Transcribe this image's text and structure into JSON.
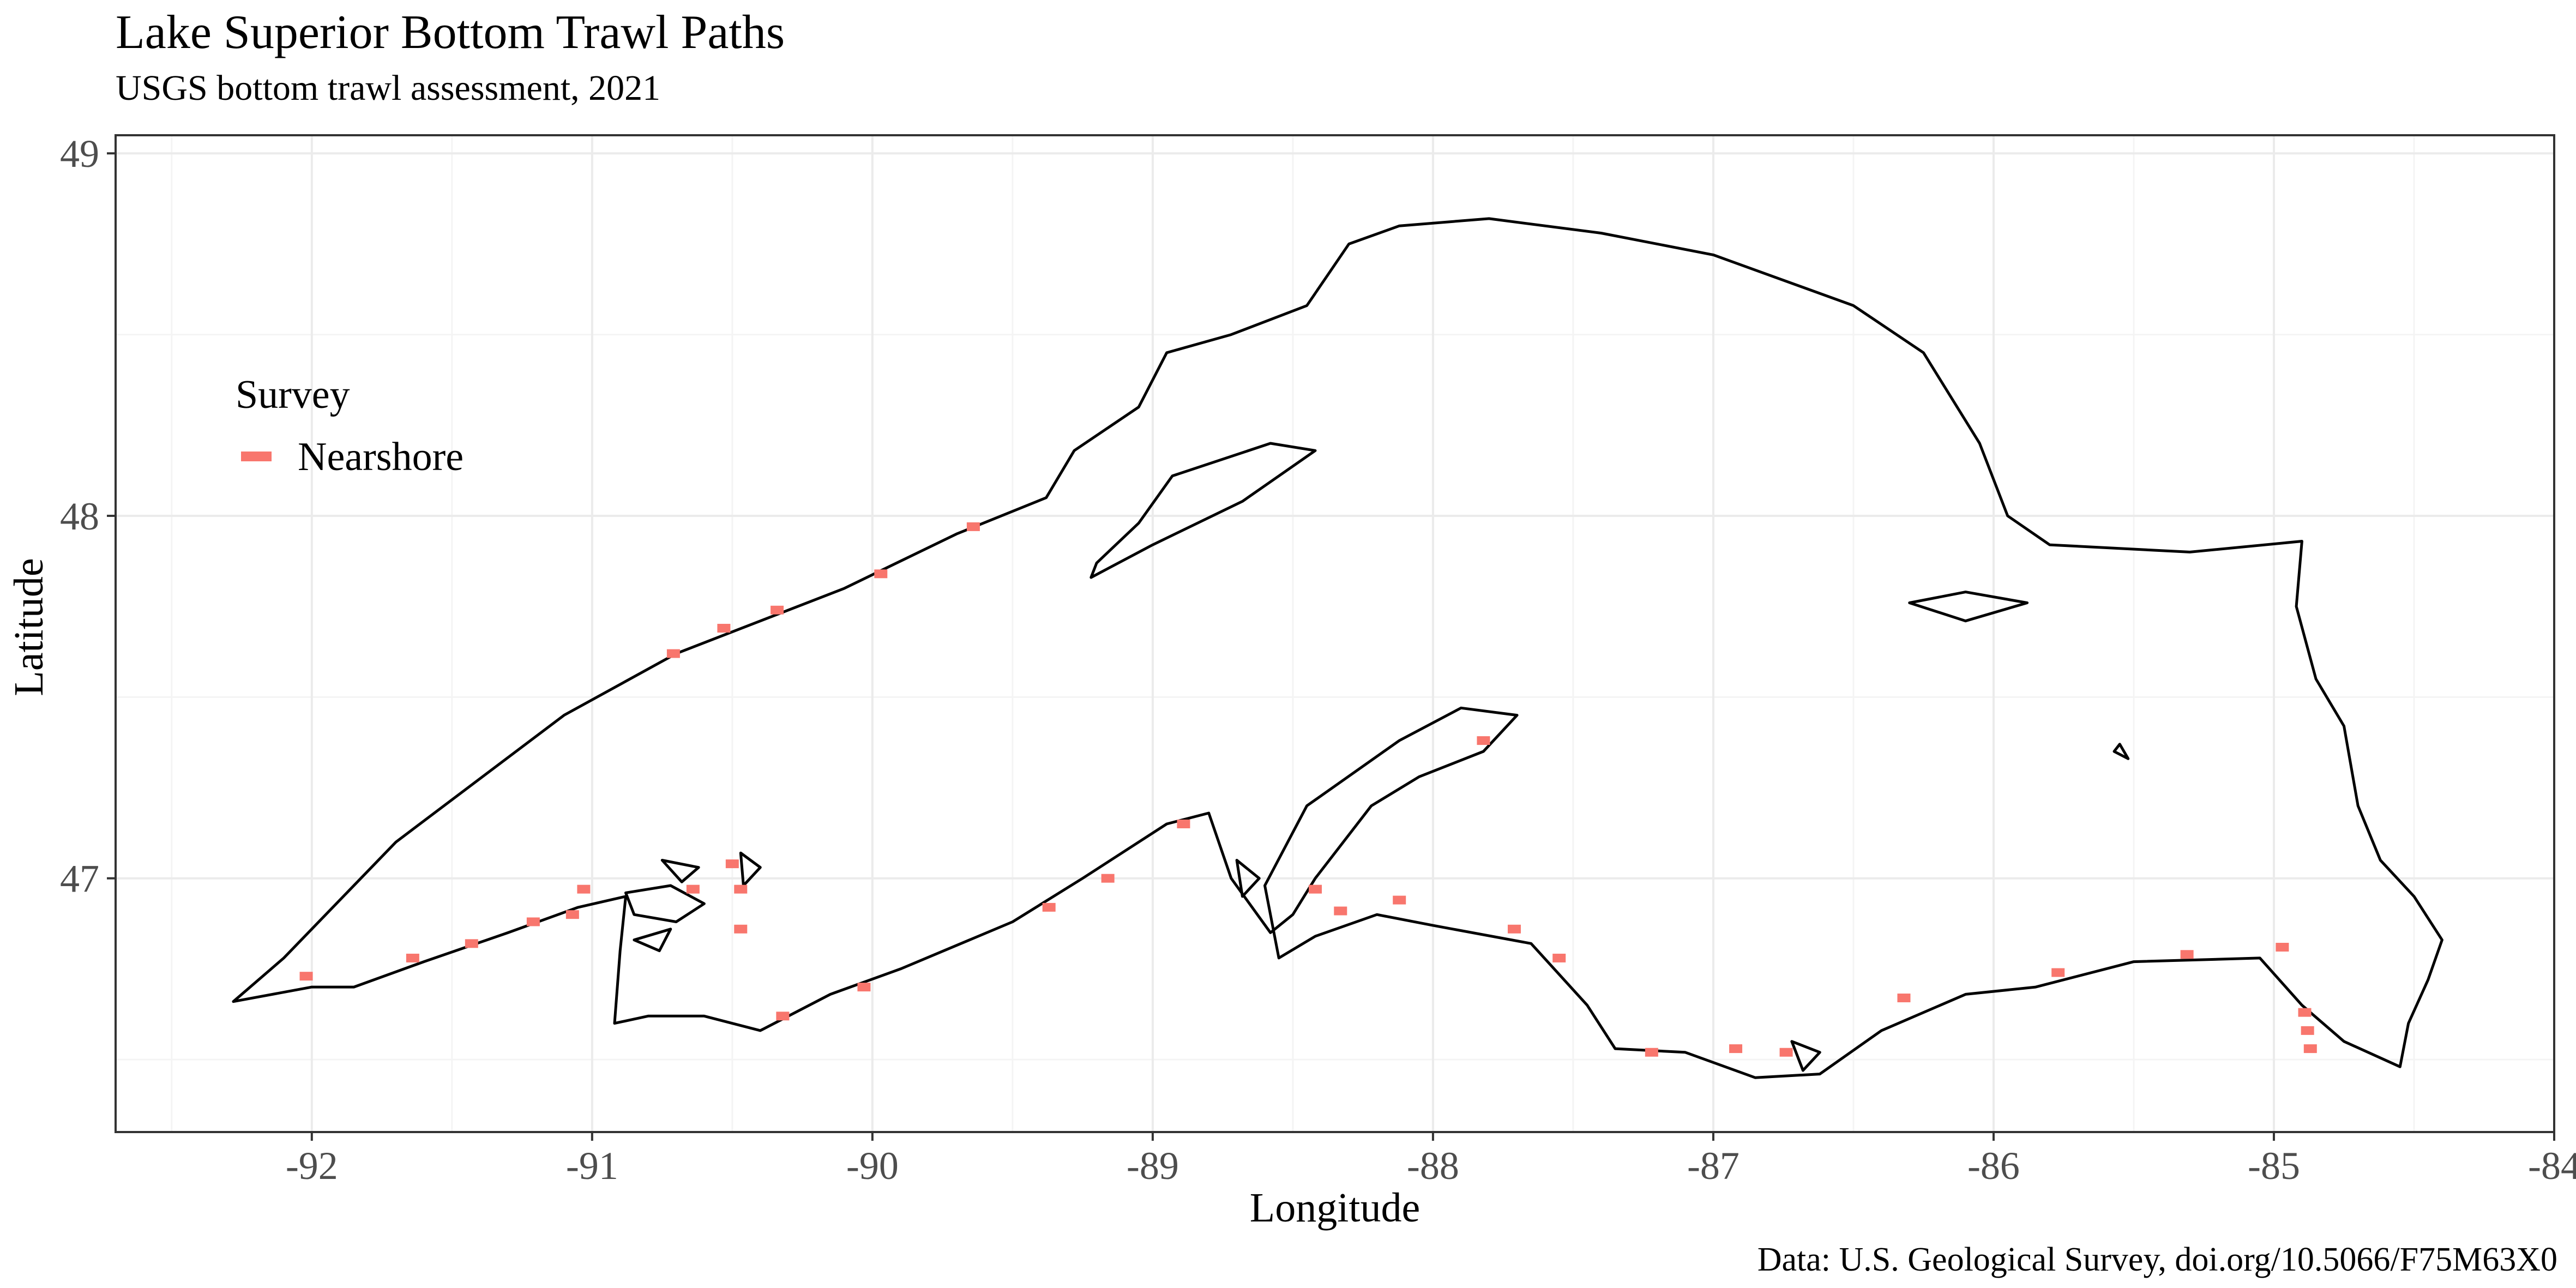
{
  "title": "Lake Superior Bottom Trawl Paths",
  "subtitle": "USGS bottom trawl assessment, 2021",
  "caption": "Data: U.S. Geological Survey, doi.org/10.5066/F75M63X0",
  "chart_data": {
    "type": "scatter",
    "title": "Lake Superior Bottom Trawl Paths",
    "subtitle": "USGS bottom trawl assessment, 2021",
    "xlabel": "Longitude",
    "ylabel": "Latitude",
    "xlim": [
      -92.7,
      -84.0
    ],
    "ylim": [
      46.3,
      49.05
    ],
    "x_ticks": [
      -92,
      -91,
      -90,
      -89,
      -88,
      -87,
      -86,
      -85,
      -84
    ],
    "x_tick_labels": [
      "-92",
      "-91",
      "-90",
      "-89",
      "-88",
      "-87",
      "-86",
      "-85",
      "-84"
    ],
    "y_ticks": [
      47,
      48,
      49
    ],
    "y_tick_labels": [
      "47",
      "48",
      "49"
    ],
    "grid": true,
    "legend": {
      "title": "Survey",
      "position": "top-left",
      "entries": [
        "Nearshore"
      ]
    },
    "series": [
      {
        "name": "Nearshore",
        "color": "#F8766D",
        "points": [
          {
            "x": -92.02,
            "y": 46.73
          },
          {
            "x": -91.64,
            "y": 46.78
          },
          {
            "x": -91.43,
            "y": 46.82
          },
          {
            "x": -91.21,
            "y": 46.88
          },
          {
            "x": -91.07,
            "y": 46.9
          },
          {
            "x": -91.03,
            "y": 46.97
          },
          {
            "x": -90.64,
            "y": 46.97
          },
          {
            "x": -90.5,
            "y": 47.04
          },
          {
            "x": -90.47,
            "y": 46.97
          },
          {
            "x": -90.47,
            "y": 46.86
          },
          {
            "x": -90.32,
            "y": 46.62
          },
          {
            "x": -90.03,
            "y": 46.7
          },
          {
            "x": -89.37,
            "y": 46.92
          },
          {
            "x": -89.16,
            "y": 47.0
          },
          {
            "x": -88.89,
            "y": 47.15
          },
          {
            "x": -88.42,
            "y": 46.97
          },
          {
            "x": -88.33,
            "y": 46.91
          },
          {
            "x": -88.12,
            "y": 46.94
          },
          {
            "x": -87.82,
            "y": 47.38
          },
          {
            "x": -87.71,
            "y": 46.86
          },
          {
            "x": -87.55,
            "y": 46.78
          },
          {
            "x": -87.22,
            "y": 46.52
          },
          {
            "x": -86.92,
            "y": 46.53
          },
          {
            "x": -86.74,
            "y": 46.52
          },
          {
            "x": -86.32,
            "y": 46.67
          },
          {
            "x": -85.77,
            "y": 46.74
          },
          {
            "x": -85.31,
            "y": 46.79
          },
          {
            "x": -84.97,
            "y": 46.81
          },
          {
            "x": -84.89,
            "y": 46.63
          },
          {
            "x": -84.88,
            "y": 46.58
          },
          {
            "x": -84.87,
            "y": 46.53
          },
          {
            "x": -90.71,
            "y": 47.62
          },
          {
            "x": -90.53,
            "y": 47.69
          },
          {
            "x": -90.34,
            "y": 47.74
          },
          {
            "x": -89.97,
            "y": 47.84
          },
          {
            "x": -89.64,
            "y": 47.97
          }
        ]
      }
    ]
  },
  "map": {
    "shoreline_color": "#000000",
    "main_shore": [
      [
        -92.28,
        46.66
      ],
      [
        -92.1,
        46.78
      ],
      [
        -91.7,
        47.1
      ],
      [
        -91.1,
        47.45
      ],
      [
        -90.7,
        47.62
      ],
      [
        -90.1,
        47.8
      ],
      [
        -89.7,
        47.95
      ],
      [
        -89.38,
        48.05
      ],
      [
        -89.28,
        48.18
      ],
      [
        -89.05,
        48.3
      ],
      [
        -88.95,
        48.45
      ],
      [
        -88.72,
        48.5
      ],
      [
        -88.45,
        48.58
      ],
      [
        -88.3,
        48.75
      ],
      [
        -88.12,
        48.8
      ],
      [
        -87.8,
        48.82
      ],
      [
        -87.4,
        48.78
      ],
      [
        -87.0,
        48.72
      ],
      [
        -86.5,
        48.58
      ],
      [
        -86.25,
        48.45
      ],
      [
        -86.05,
        48.2
      ],
      [
        -85.95,
        48.0
      ],
      [
        -85.8,
        47.92
      ],
      [
        -85.3,
        47.9
      ],
      [
        -84.9,
        47.93
      ],
      [
        -84.92,
        47.75
      ],
      [
        -84.85,
        47.55
      ],
      [
        -84.75,
        47.42
      ],
      [
        -84.7,
        47.2
      ],
      [
        -84.62,
        47.05
      ],
      [
        -84.5,
        46.95
      ],
      [
        -84.4,
        46.83
      ],
      [
        -84.45,
        46.72
      ],
      [
        -84.52,
        46.6
      ],
      [
        -84.55,
        46.48
      ],
      [
        -84.75,
        46.55
      ],
      [
        -84.9,
        46.65
      ],
      [
        -85.05,
        46.78
      ],
      [
        -85.5,
        46.77
      ],
      [
        -85.85,
        46.7
      ],
      [
        -86.1,
        46.68
      ],
      [
        -86.4,
        46.58
      ],
      [
        -86.62,
        46.46
      ],
      [
        -86.85,
        46.45
      ],
      [
        -87.1,
        46.52
      ],
      [
        -87.35,
        46.53
      ],
      [
        -87.45,
        46.65
      ],
      [
        -87.65,
        46.82
      ],
      [
        -88.0,
        46.87
      ],
      [
        -88.2,
        46.9
      ],
      [
        -88.42,
        46.84
      ],
      [
        -88.55,
        46.78
      ],
      [
        -88.6,
        46.98
      ],
      [
        -88.45,
        47.2
      ],
      [
        -88.12,
        47.38
      ],
      [
        -87.9,
        47.47
      ],
      [
        -87.7,
        47.45
      ],
      [
        -87.82,
        47.35
      ],
      [
        -88.05,
        47.28
      ],
      [
        -88.22,
        47.2
      ],
      [
        -88.42,
        47.0
      ],
      [
        -88.5,
        46.9
      ],
      [
        -88.58,
        46.85
      ],
      [
        -88.72,
        47.0
      ],
      [
        -88.8,
        47.18
      ],
      [
        -88.95,
        47.15
      ],
      [
        -89.25,
        47.0
      ],
      [
        -89.5,
        46.88
      ],
      [
        -89.9,
        46.75
      ],
      [
        -90.15,
        46.68
      ],
      [
        -90.4,
        46.58
      ],
      [
        -90.6,
        46.62
      ],
      [
        -90.8,
        46.62
      ],
      [
        -90.92,
        46.6
      ],
      [
        -90.9,
        46.8
      ],
      [
        -90.88,
        46.95
      ],
      [
        -91.05,
        46.92
      ],
      [
        -91.3,
        46.85
      ],
      [
        -91.6,
        46.77
      ],
      [
        -91.85,
        46.7
      ],
      [
        -92.0,
        46.7
      ],
      [
        -92.28,
        46.66
      ]
    ],
    "islands": [
      [
        [
          -88.93,
          48.11
        ],
        [
          -88.58,
          48.2
        ],
        [
          -88.42,
          48.18
        ],
        [
          -88.68,
          48.04
        ],
        [
          -89.0,
          47.92
        ],
        [
          -89.22,
          47.83
        ],
        [
          -89.2,
          47.87
        ],
        [
          -89.05,
          47.98
        ],
        [
          -88.93,
          48.11
        ]
      ],
      [
        [
          -86.3,
          47.76
        ],
        [
          -86.1,
          47.79
        ],
        [
          -85.88,
          47.76
        ],
        [
          -86.1,
          47.71
        ],
        [
          -86.3,
          47.76
        ]
      ],
      [
        [
          -90.88,
          46.96
        ],
        [
          -90.72,
          46.98
        ],
        [
          -90.6,
          46.93
        ],
        [
          -90.7,
          46.88
        ],
        [
          -90.85,
          46.9
        ],
        [
          -90.88,
          46.96
        ]
      ],
      [
        [
          -90.75,
          47.05
        ],
        [
          -90.62,
          47.03
        ],
        [
          -90.68,
          46.99
        ],
        [
          -90.75,
          47.05
        ]
      ],
      [
        [
          -90.85,
          46.83
        ],
        [
          -90.72,
          46.86
        ],
        [
          -90.76,
          46.8
        ],
        [
          -90.85,
          46.83
        ]
      ],
      [
        [
          -90.47,
          47.07
        ],
        [
          -90.4,
          47.03
        ],
        [
          -90.46,
          46.98
        ],
        [
          -90.47,
          47.07
        ]
      ],
      [
        [
          -88.7,
          47.05
        ],
        [
          -88.62,
          47.0
        ],
        [
          -88.68,
          46.95
        ],
        [
          -88.7,
          47.05
        ]
      ],
      [
        [
          -86.72,
          46.55
        ],
        [
          -86.62,
          46.52
        ],
        [
          -86.68,
          46.47
        ],
        [
          -86.72,
          46.55
        ]
      ],
      [
        [
          -85.55,
          47.37
        ],
        [
          -85.52,
          47.33
        ],
        [
          -85.57,
          47.35
        ],
        [
          -85.55,
          47.37
        ]
      ]
    ]
  }
}
